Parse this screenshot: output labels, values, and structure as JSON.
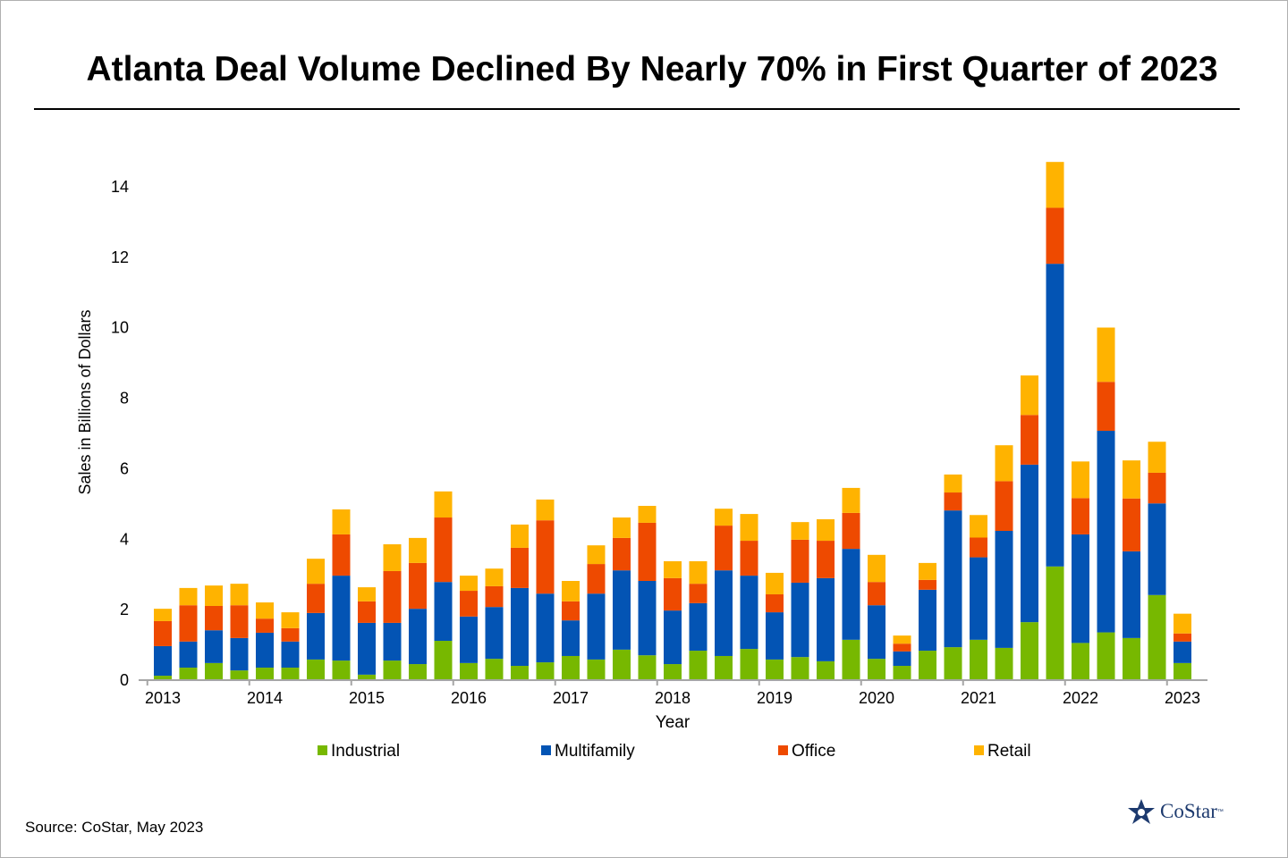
{
  "title": "Atlanta Deal Volume Declined By Nearly 70% in First Quarter of 2023",
  "source": "Source: CoStar, May 2023",
  "logo_text": "CoStar",
  "logo_tm": "™",
  "chart_data": {
    "type": "bar",
    "stacked": true,
    "title": "Atlanta Deal Volume Declined By Nearly 70% in First Quarter of 2023",
    "xlabel": "Year",
    "ylabel": "Sales in Billions of Dollars",
    "ylim": [
      0,
      15
    ],
    "yticks": [
      0,
      2,
      4,
      6,
      8,
      10,
      12,
      14
    ],
    "grid": false,
    "legend": "bottom",
    "x_tick_labels": [
      "2013",
      "2014",
      "2015",
      "2016",
      "2017",
      "2018",
      "2019",
      "2020",
      "2021",
      "2022",
      "2023"
    ],
    "categories": [
      "2013",
      "",
      "",
      "",
      "2014",
      "",
      "",
      "",
      "2015",
      "",
      "",
      "",
      "2016",
      "",
      "",
      "",
      "2017",
      "",
      "",
      "",
      "2018",
      "",
      "",
      "",
      "2019",
      "",
      "",
      "",
      "2020",
      "",
      "",
      "",
      "2021",
      "",
      "",
      "",
      "2022",
      "",
      "",
      "",
      "2023"
    ],
    "series": [
      {
        "name": "Industrial",
        "color": "#77B800",
        "values": [
          0.1,
          0.33,
          0.46,
          0.25,
          0.33,
          0.33,
          0.56,
          0.53,
          0.13,
          0.53,
          0.43,
          1.09,
          0.46,
          0.58,
          0.38,
          0.48,
          0.66,
          0.56,
          0.84,
          0.68,
          0.43,
          0.81,
          0.66,
          0.86,
          0.56,
          0.63,
          0.51,
          1.12,
          0.58,
          0.38,
          0.81,
          0.91,
          1.12,
          0.89,
          1.62,
          3.2,
          1.03,
          1.33,
          1.17,
          2.39,
          0.46
        ]
      },
      {
        "name": "Multifamily",
        "color": "#0354B4",
        "values": [
          0.84,
          0.74,
          0.93,
          0.92,
          0.99,
          0.74,
          1.32,
          2.41,
          1.47,
          1.07,
          1.57,
          1.67,
          1.32,
          1.47,
          2.21,
          1.95,
          1.01,
          1.87,
          2.25,
          2.11,
          1.52,
          1.35,
          2.43,
          2.08,
          1.34,
          2.11,
          2.36,
          2.58,
          1.52,
          0.41,
          1.73,
          3.88,
          2.34,
          3.32,
          4.47,
          8.59,
          3.08,
          5.72,
          2.46,
          2.6,
          0.61
        ]
      },
      {
        "name": "Office",
        "color": "#EE4A00",
        "values": [
          0.71,
          1.03,
          0.69,
          0.93,
          0.4,
          0.38,
          0.83,
          1.17,
          0.61,
          1.47,
          1.3,
          1.83,
          0.73,
          0.59,
          1.14,
          2.08,
          0.54,
          0.84,
          0.92,
          1.65,
          0.92,
          0.55,
          1.27,
          0.99,
          0.51,
          1.22,
          1.06,
          1.02,
          0.66,
          0.22,
          0.28,
          0.51,
          0.56,
          1.41,
          1.41,
          1.59,
          1.03,
          1.39,
          1.5,
          0.87,
          0.23
        ]
      },
      {
        "name": "Retail",
        "color": "#FFB300",
        "values": [
          0.35,
          0.49,
          0.58,
          0.61,
          0.46,
          0.45,
          0.71,
          0.71,
          0.4,
          0.76,
          0.71,
          0.74,
          0.43,
          0.5,
          0.66,
          0.59,
          0.58,
          0.53,
          0.58,
          0.48,
          0.48,
          0.64,
          0.48,
          0.76,
          0.61,
          0.5,
          0.61,
          0.71,
          0.77,
          0.23,
          0.48,
          0.51,
          0.64,
          1.02,
          1.12,
          1.3,
          1.04,
          1.54,
          1.08,
          0.88,
          0.56
        ]
      }
    ]
  }
}
